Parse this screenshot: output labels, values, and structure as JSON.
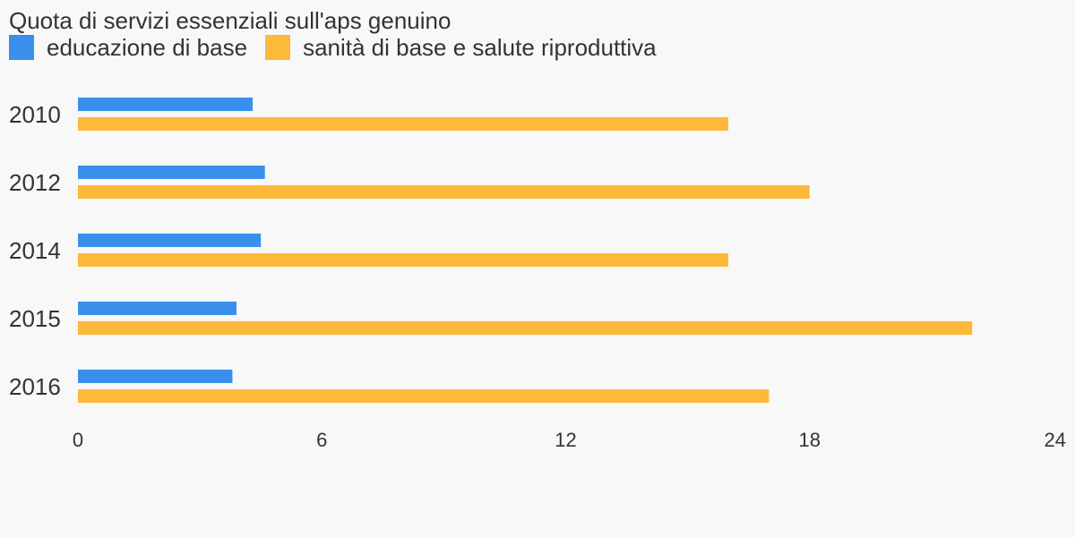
{
  "chart_data": {
    "type": "bar",
    "orientation": "horizontal",
    "title": "Quota di servizi essenziali sull'aps genuino",
    "categories": [
      "2010",
      "2012",
      "2014",
      "2015",
      "2016"
    ],
    "series": [
      {
        "name": "educazione di base",
        "color": "#3a8fec",
        "values": [
          4.3,
          4.6,
          4.5,
          3.9,
          3.8
        ]
      },
      {
        "name": "sanità di base e salute riproduttiva",
        "color": "#fdb93a",
        "values": [
          16.0,
          18.0,
          16.0,
          22.0,
          17.0
        ]
      }
    ],
    "xlim": [
      0,
      24
    ],
    "xticks": [
      "0",
      "6",
      "12",
      "18",
      "24"
    ],
    "legend_position": "top-left",
    "grid": false
  }
}
